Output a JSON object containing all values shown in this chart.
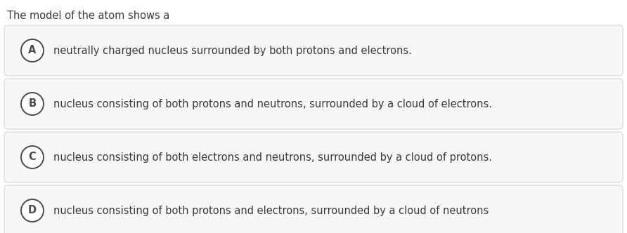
{
  "question": "The model of the atom shows a",
  "options": [
    {
      "label": "A",
      "text": "neutrally charged nucleus surrounded by both protons and electrons."
    },
    {
      "label": "B",
      "text": "nucleus consisting of both protons and neutrons, surrounded by a cloud of electrons."
    },
    {
      "label": "C",
      "text": "nucleus consisting of both electrons and neutrons, surrounded by a cloud of protons."
    },
    {
      "label": "D",
      "text": "nucleus consisting of both protons and electrons, surrounded by a cloud of neutrons"
    }
  ],
  "bg_color": "#ffffff",
  "option_bg_color": "#f7f7f7",
  "option_border_color": "#d8d8d8",
  "text_color": "#3a3a3a",
  "circle_edge_color": "#4a4a4a",
  "circle_face_color": "#ffffff",
  "question_fontsize": 10.5,
  "option_fontsize": 10.5,
  "label_fontsize": 10.5,
  "fig_width": 8.92,
  "fig_height": 3.32,
  "dpi": 100
}
